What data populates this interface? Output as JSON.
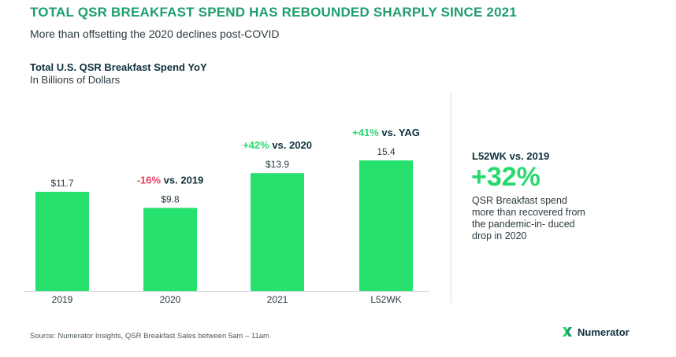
{
  "headline": "TOTAL QSR BREAKFAST SPEND HAS REBOUNDED SHARPLY SINCE 2021",
  "subheadline": "More than offsetting the 2020 declines post-COVID",
  "chart_data": {
    "type": "bar",
    "title": "Total U.S. QSR Breakfast Spend YoY",
    "subtitle": "In Billions of Dollars",
    "categories": [
      "2019",
      "2020",
      "2021",
      "L52WK"
    ],
    "values": [
      11.7,
      9.8,
      13.9,
      15.4
    ],
    "value_labels": [
      "$11.7",
      "$9.8",
      "$13.9",
      "15.4"
    ],
    "annotations": [
      null,
      {
        "change": "-16%",
        "rest": " vs. 2019",
        "color": "#ee3b5b"
      },
      {
        "change": "+42%",
        "rest": " vs. 2020",
        "color": "#27d96e"
      },
      {
        "change": "+41%",
        "rest": " vs. YAG",
        "color": "#27d96e"
      }
    ],
    "bar_color": "#27e16f",
    "ylim": [
      0,
      15.4
    ],
    "grid": false,
    "legend": "none"
  },
  "callout": {
    "heading": "L52WK vs. 2019",
    "value": "+32%",
    "text": "QSR Breakfast spend more than recovered from the pandemic-in- duced drop in 2020",
    "color": "#27d96e"
  },
  "source": "Source: Numerator Insights, QSR Breakfast Sales between 5am – 11am",
  "brand": {
    "name": "Numerator",
    "logo_icon": "numerator-logo-icon"
  }
}
